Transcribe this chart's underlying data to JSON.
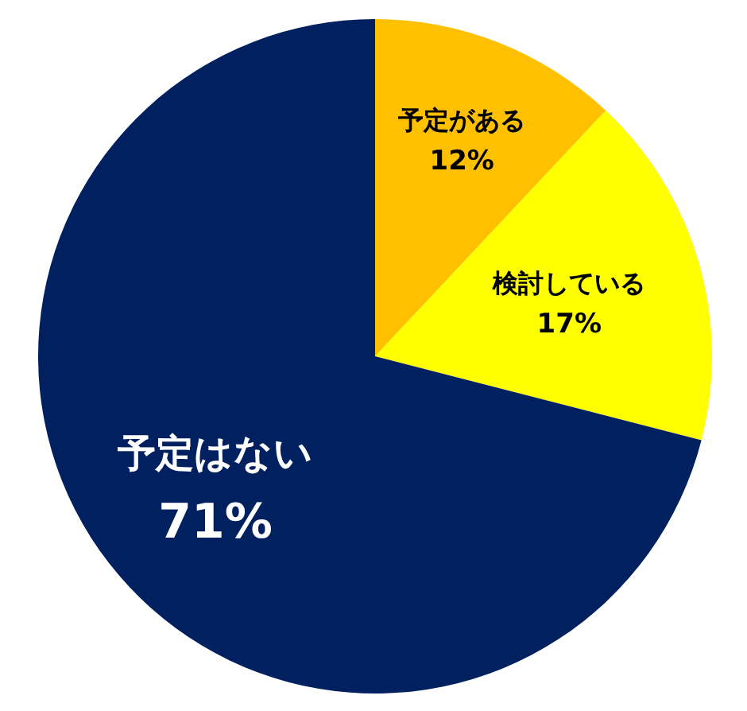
{
  "chart_data": {
    "type": "pie",
    "categories": [
      "予定がある",
      "検討している",
      "予定はない"
    ],
    "values": [
      12,
      17,
      71
    ],
    "value_labels": [
      "12%",
      "17%",
      "71%"
    ],
    "colors": [
      "#ffc000",
      "#ffff00",
      "#002060"
    ]
  }
}
